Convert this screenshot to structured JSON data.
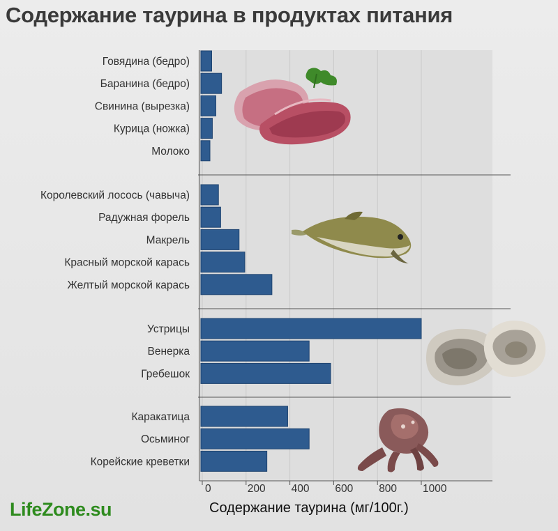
{
  "header": {
    "title": "Содержание таурина в продуктах питания"
  },
  "footer": {
    "logo_text": "LifeZone.su"
  },
  "colors": {
    "bar": "#2e5b8f",
    "bar_edge": "#1f4470",
    "background": "#e6e6e6",
    "plot_background": "#dedede",
    "logo": "#2e8b1e"
  },
  "illustrations": [
    "meat",
    "fish",
    "oysters",
    "octopus"
  ],
  "chart_data": {
    "type": "bar",
    "orientation": "horizontal",
    "title": "Содержание таурина в продуктах питания",
    "xlabel": "Содержание таурина (мг/100г.)",
    "ylabel": "",
    "xlim": [
      0,
      1000
    ],
    "xticks": [
      0,
      200,
      400,
      600,
      800,
      1000
    ],
    "grid": true,
    "groups": [
      {
        "categories": [
          "Говядина (бедро)",
          "Баранина (бедро)",
          "Свинина (вырезка)",
          "Курица (ножка)",
          "Молоко"
        ],
        "values": [
          43,
          88,
          62,
          46,
          35
        ]
      },
      {
        "categories": [
          "Королевский лосось (чавыча)",
          "Радужная форель",
          "Макрель",
          "Красный морской карась",
          "Желтый морской карась"
        ],
        "values": [
          74,
          84,
          168,
          194,
          318
        ]
      },
      {
        "categories": [
          "Устрицы",
          "Венерка",
          "Гребешок"
        ],
        "values": [
          1000,
          488,
          586
        ]
      },
      {
        "categories": [
          "Каракатица",
          "Осьминог",
          "Корейские креветки"
        ],
        "values": [
          390,
          488,
          295
        ]
      }
    ]
  }
}
